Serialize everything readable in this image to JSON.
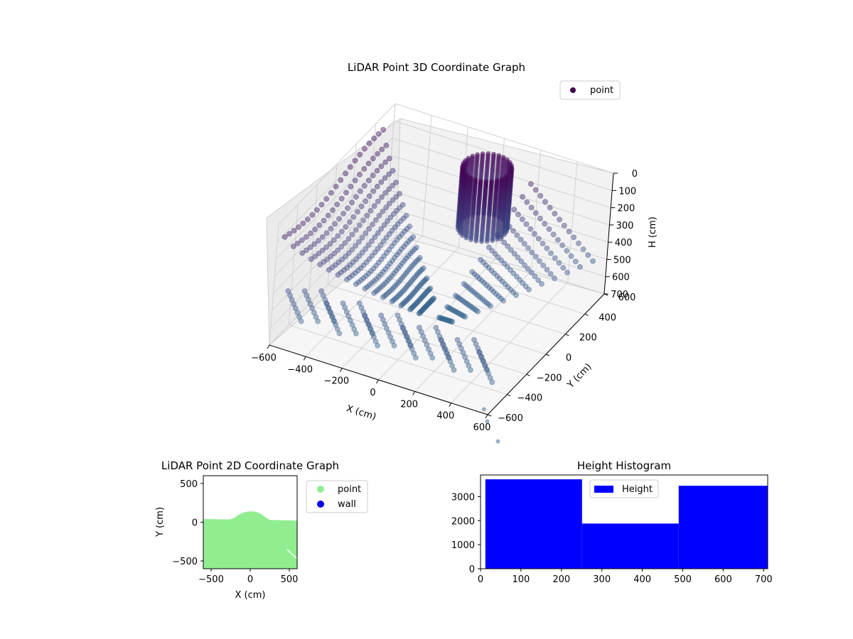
{
  "chart_data": [
    {
      "type": "scatter3d",
      "title": "LiDAR Point 3D Coordinate Graph",
      "xlabel": "X (cm)",
      "ylabel": "Y (cm)",
      "zlabel": "H (cm)",
      "xlim": [
        -600,
        600
      ],
      "ylim": [
        -600,
        600
      ],
      "zlim": [
        0,
        700
      ],
      "z_inverted": true,
      "x_ticks": [
        "−600",
        "−400",
        "−200",
        "0",
        "200",
        "400",
        "600"
      ],
      "y_ticks": [
        "−600",
        "−400",
        "−200",
        "0",
        "200",
        "400",
        "600"
      ],
      "z_ticks": [
        "0",
        "100",
        "200",
        "300",
        "400",
        "500",
        "600",
        "700"
      ],
      "legend": {
        "entries": [
          "point"
        ],
        "placement": "top-right"
      },
      "colormap": "viridis",
      "grid": true
    },
    {
      "type": "scatter",
      "title": "LiDAR Point 2D Coordinate Graph",
      "xlabel": "X (cm)",
      "ylabel": "Y (cm)",
      "xlim": [
        -600,
        600
      ],
      "ylim": [
        -600,
        600
      ],
      "x_ticks": [
        "−500",
        "0",
        "500"
      ],
      "y_ticks": [
        "−500",
        "0",
        "500"
      ],
      "series": [
        {
          "name": "point",
          "color": "#90ee90"
        },
        {
          "name": "wall",
          "color": "#0000ee"
        }
      ],
      "boundary": {
        "x": [
          -600,
          -500,
          -400,
          -300,
          -250,
          -200,
          -150,
          -100,
          -50,
          0,
          50,
          100,
          150,
          200,
          250,
          300,
          400,
          500,
          600
        ],
        "y": [
          40,
          40,
          38,
          36,
          38,
          60,
          95,
          120,
          135,
          140,
          138,
          125,
          100,
          60,
          30,
          28,
          26,
          24,
          20
        ]
      },
      "legend": {
        "placement": "outside-right"
      }
    },
    {
      "type": "histogram",
      "title": "Height Histogram",
      "xlim": [
        0,
        710
      ],
      "ylim": [
        0,
        3900
      ],
      "x_ticks": [
        "0",
        "100",
        "200",
        "300",
        "400",
        "500",
        "600",
        "700"
      ],
      "y_ticks": [
        "0",
        "1000",
        "2000",
        "3000"
      ],
      "bins": [
        {
          "start": 12,
          "end": 251,
          "count": 3720
        },
        {
          "start": 251,
          "end": 490,
          "count": 1880
        },
        {
          "start": 490,
          "end": 710,
          "count": 3450
        }
      ],
      "color": "#0000ff",
      "legend": {
        "entries": [
          "Height"
        ],
        "placement": "top-center"
      }
    }
  ]
}
